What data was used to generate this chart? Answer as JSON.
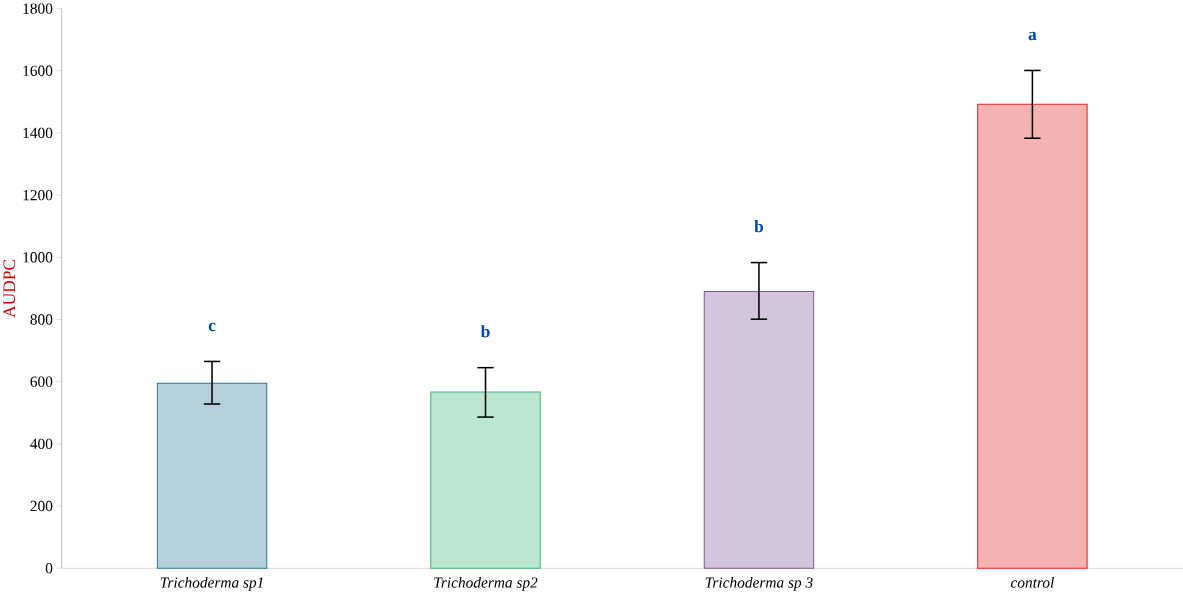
{
  "chart_data": {
    "type": "bar",
    "ylabel": "AUDPC",
    "categories": [
      "Trichoderma sp1",
      "Trichoderma sp2",
      "Trichoderma sp 3",
      "control"
    ],
    "values": [
      595,
      567,
      890,
      1492
    ],
    "colors": [
      "#2b7a99",
      "#3cb878",
      "#7e5a9b",
      "#e02424"
    ],
    "errors": [
      [
        528,
        665
      ],
      [
        486,
        645
      ],
      [
        801,
        983
      ],
      [
        1383,
        1601
      ]
    ],
    "ylim": [
      0,
      1800
    ],
    "yticks": [
      0,
      200,
      400,
      600,
      800,
      1000,
      1200,
      1400,
      1600,
      1800
    ],
    "annotations": [
      "c",
      "b",
      "b",
      "a"
    ]
  }
}
